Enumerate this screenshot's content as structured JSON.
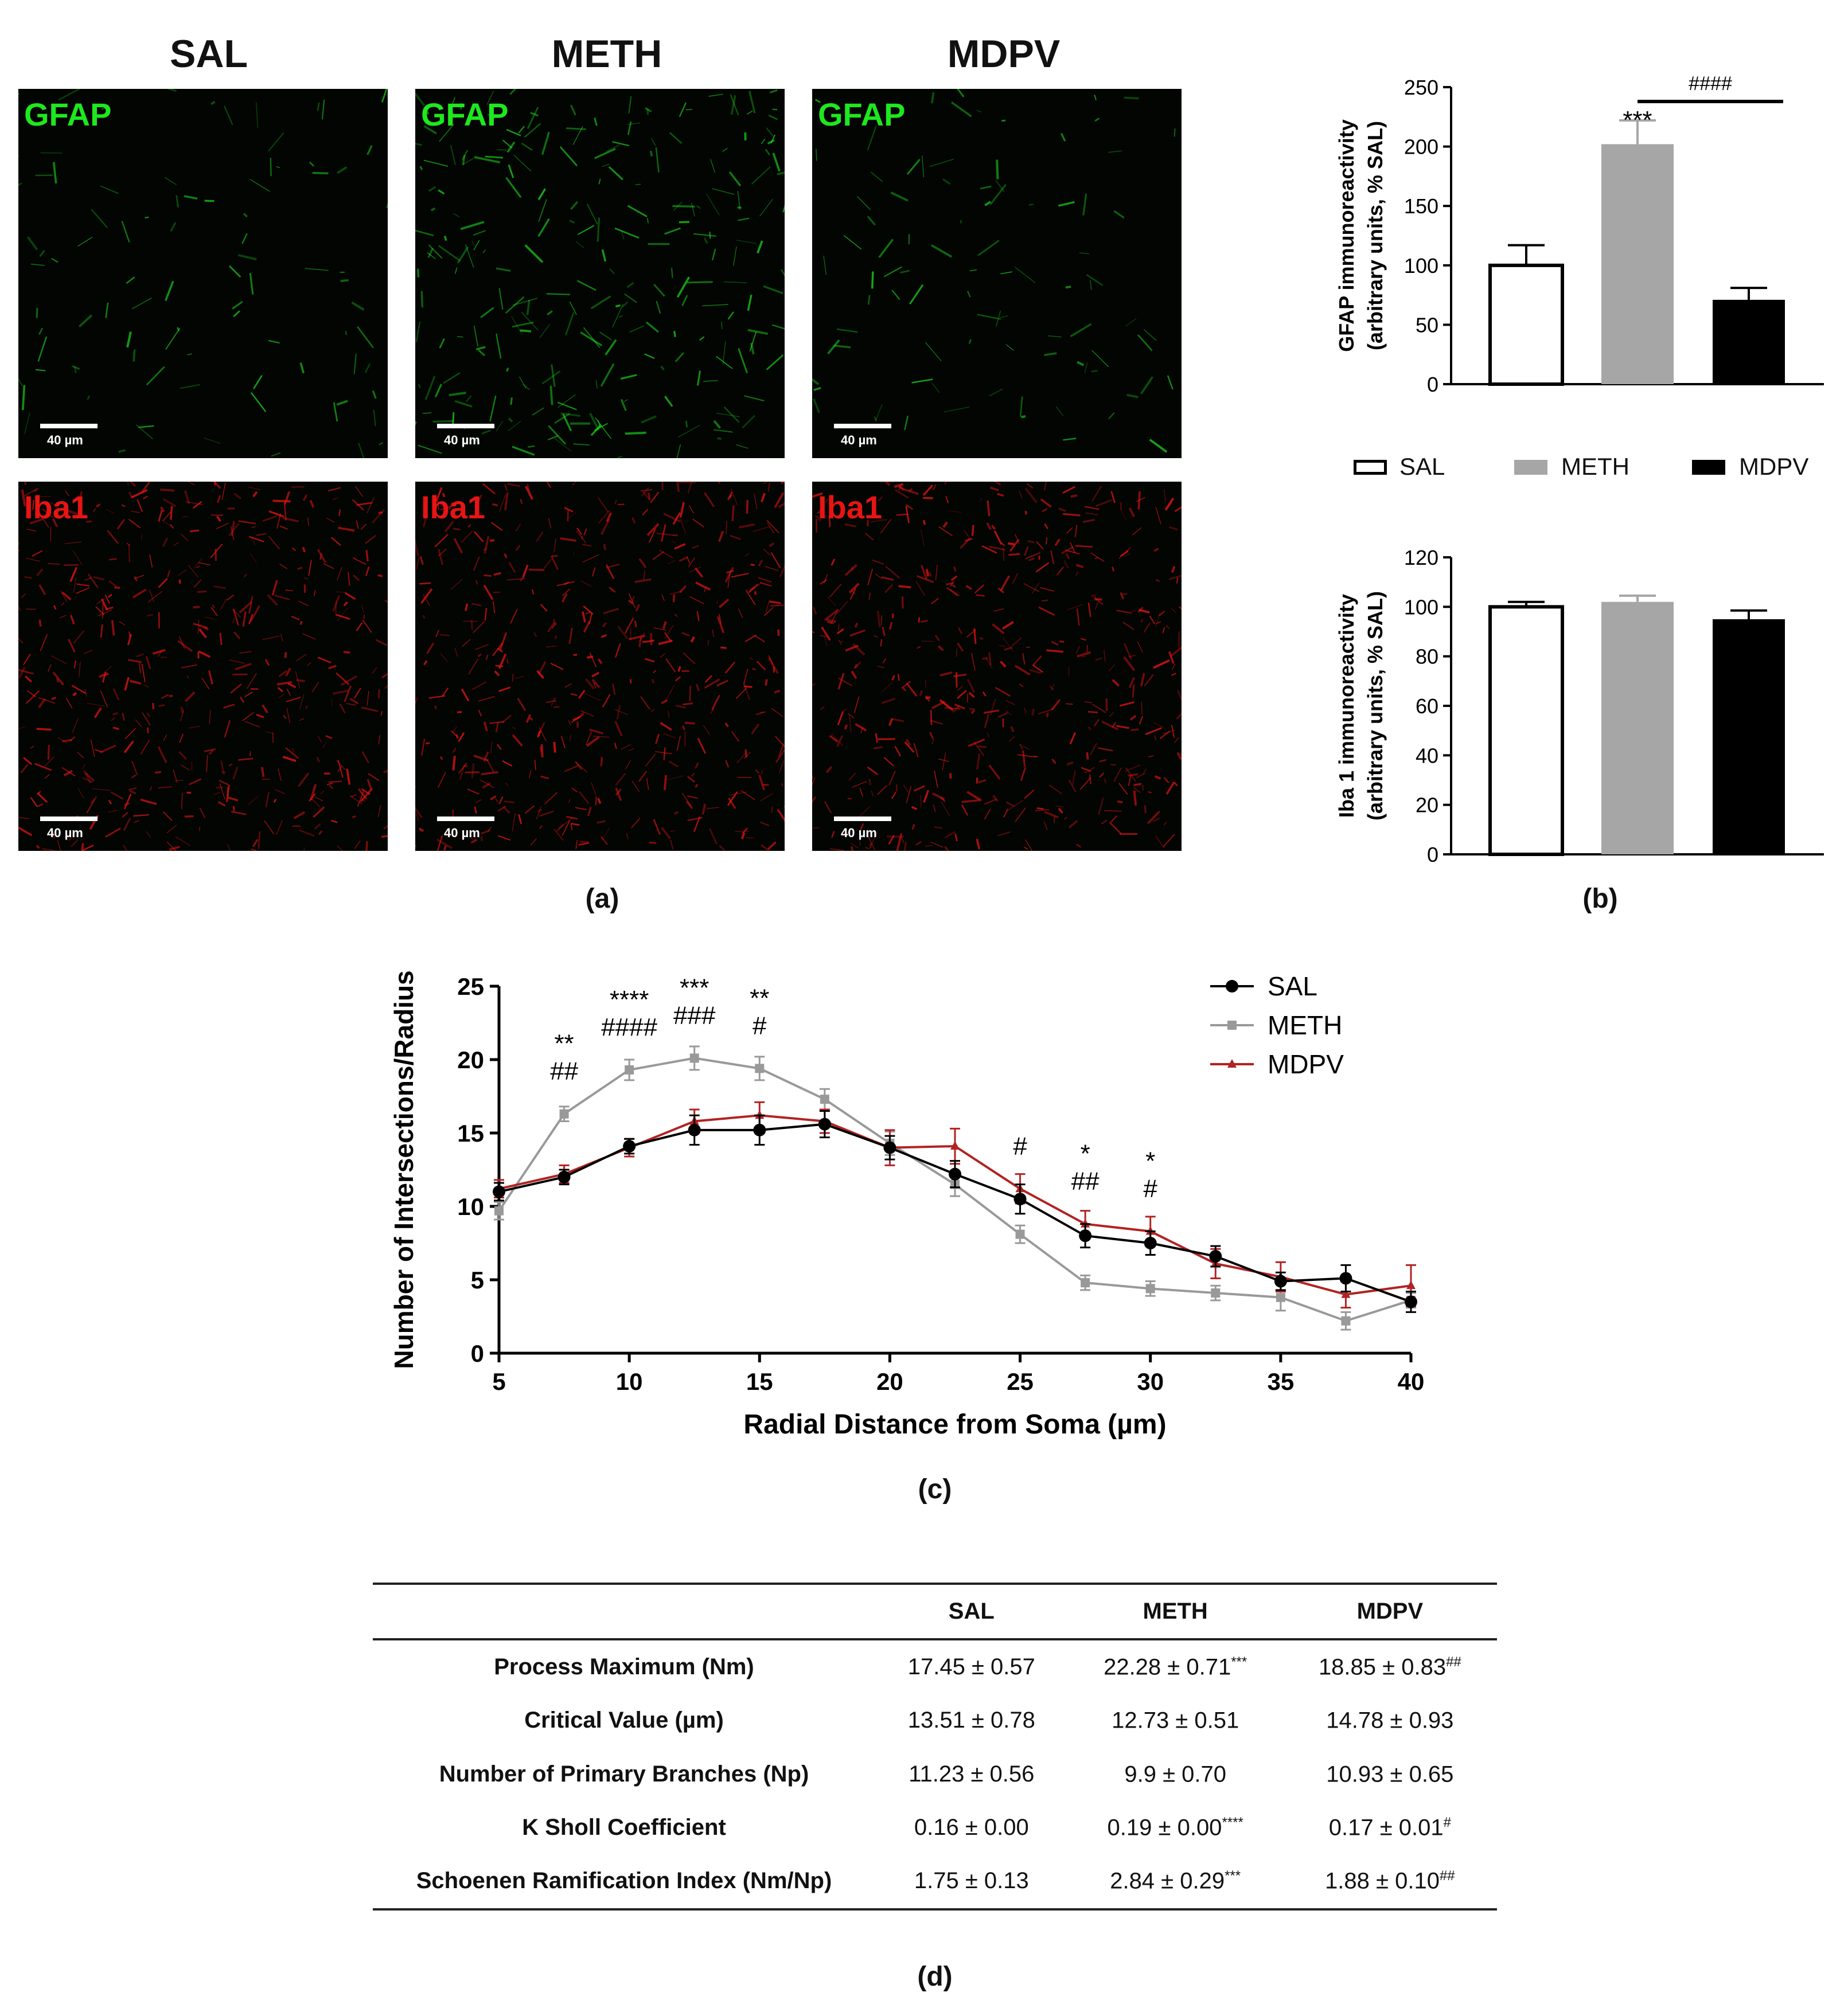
{
  "panel_a": {
    "columns": [
      "SAL",
      "METH",
      "MDPV"
    ],
    "row_labels": [
      "GFAP",
      "Iba1"
    ],
    "scale_bar": "40 µm",
    "colors": {
      "gfap": "#1ee81e",
      "iba1": "#e81414"
    }
  },
  "panel_labels": {
    "a": "(a)",
    "b": "(b)",
    "c": "(c)",
    "d": "(d)"
  },
  "legend_b": [
    "SAL",
    "METH",
    "MDPV"
  ],
  "chart_data": [
    {
      "type": "bar",
      "categories": [
        "SAL",
        "METH",
        "MDPV"
      ],
      "values": [
        100,
        202,
        71
      ],
      "errors": [
        17,
        20,
        10
      ],
      "ylabel_lines": [
        "GFAP immunoreactivity",
        "(arbitrary units, % SAL)"
      ],
      "ylim": [
        0,
        250
      ],
      "yticks": [
        "0",
        "50",
        "100",
        "150",
        "200",
        "250"
      ],
      "ytick_values": [
        0,
        50,
        100,
        150,
        200,
        250
      ],
      "colors": [
        "#ffffff",
        "#a6a6a6",
        "#000000"
      ],
      "annotations": [
        "***",
        "####"
      ]
    },
    {
      "type": "bar",
      "categories": [
        "SAL",
        "METH",
        "MDPV"
      ],
      "values": [
        100,
        102,
        95
      ],
      "errors": [
        2,
        2.5,
        3.5
      ],
      "ylabel_lines": [
        "Iba 1 immunoreactivity",
        "(arbitrary units, % SAL)"
      ],
      "ylim": [
        0,
        120
      ],
      "yticks": [
        "0",
        "20",
        "40",
        "60",
        "80",
        "100",
        "120"
      ],
      "ytick_values": [
        0,
        20,
        40,
        60,
        80,
        100,
        120
      ],
      "colors": [
        "#ffffff",
        "#a6a6a6",
        "#000000"
      ]
    },
    {
      "type": "line",
      "x": [
        5,
        7.5,
        10,
        12.5,
        15,
        17.5,
        20,
        22.5,
        25,
        27.5,
        30,
        32.5,
        35,
        37.5,
        40
      ],
      "series": [
        {
          "name": "SAL",
          "color": "#000000",
          "marker": "circle",
          "values": [
            11.0,
            12.0,
            14.1,
            15.2,
            15.2,
            15.6,
            14.0,
            12.2,
            10.5,
            8.0,
            7.5,
            6.6,
            4.9,
            5.1,
            3.5
          ],
          "errors": [
            0.6,
            0.5,
            0.5,
            1.0,
            1.0,
            0.9,
            0.8,
            0.9,
            1.0,
            0.8,
            0.8,
            0.7,
            0.6,
            0.9,
            0.7
          ]
        },
        {
          "name": "METH",
          "color": "#999999",
          "marker": "square",
          "values": [
            9.7,
            16.3,
            19.3,
            20.1,
            19.4,
            17.3,
            14.3,
            11.5,
            8.1,
            4.8,
            4.4,
            4.1,
            3.8,
            2.2,
            3.6
          ],
          "errors": [
            0.6,
            0.5,
            0.7,
            0.8,
            0.8,
            0.7,
            0.8,
            0.8,
            0.6,
            0.5,
            0.5,
            0.5,
            0.9,
            0.6,
            0.5
          ]
        },
        {
          "name": "MDPV",
          "color": "#b22222",
          "marker": "triangle",
          "values": [
            11.2,
            12.2,
            14.0,
            15.8,
            16.2,
            15.8,
            14.0,
            14.1,
            11.2,
            8.8,
            8.3,
            6.1,
            5.2,
            4.0,
            4.6
          ],
          "errors": [
            0.6,
            0.6,
            0.6,
            0.8,
            0.9,
            0.8,
            1.2,
            1.2,
            1.0,
            0.9,
            1.0,
            1.0,
            1.0,
            0.9,
            1.4
          ]
        }
      ],
      "xlabel": "Radial Distance from Soma (µm)",
      "ylabel": "Number of Intersections/Radius",
      "xlim": [
        5,
        40
      ],
      "ylim": [
        0,
        25
      ],
      "xticks": [
        "5",
        "10",
        "15",
        "20",
        "25",
        "30",
        "35",
        "40"
      ],
      "xtick_values": [
        5,
        10,
        15,
        20,
        25,
        30,
        35,
        40
      ],
      "yticks": [
        "0",
        "5",
        "10",
        "15",
        "20",
        "25"
      ],
      "ytick_values": [
        0,
        5,
        10,
        15,
        20,
        25
      ],
      "legend_position": "top-right",
      "annotations": [
        {
          "x": 7.5,
          "y": 16.3,
          "lines": [
            "**",
            "##"
          ]
        },
        {
          "x": 10,
          "y": 19.3,
          "lines": [
            "****",
            "####"
          ]
        },
        {
          "x": 12.5,
          "y": 20.1,
          "lines": [
            "***",
            "###"
          ]
        },
        {
          "x": 15,
          "y": 19.4,
          "lines": [
            "**",
            "#"
          ]
        },
        {
          "x": 25,
          "y": 11.2,
          "lines": [
            "#"
          ]
        },
        {
          "x": 27.5,
          "y": 8.8,
          "lines": [
            "*",
            "##"
          ]
        },
        {
          "x": 30,
          "y": 8.3,
          "lines": [
            "*",
            "#"
          ]
        }
      ]
    }
  ],
  "table": {
    "headers": [
      "",
      "SAL",
      "METH",
      "MDPV"
    ],
    "rows": [
      {
        "label": "Process Maximum (Nm)",
        "sal": "17.45 ± 0.57",
        "meth": "22.28 ± 0.71",
        "meth_sig": "***",
        "mdpv": "18.85 ± 0.83",
        "mdpv_sig": "##"
      },
      {
        "label": "Critical Value (µm)",
        "sal": "13.51 ± 0.78",
        "meth": "12.73 ± 0.51",
        "meth_sig": "",
        "mdpv": "14.78 ± 0.93",
        "mdpv_sig": ""
      },
      {
        "label": "Number of Primary Branches (Np)",
        "sal": "11.23 ± 0.56",
        "meth": "9.9 ± 0.70",
        "meth_sig": "",
        "mdpv": "10.93 ± 0.65",
        "mdpv_sig": ""
      },
      {
        "label": "K Sholl Coefficient",
        "sal": "0.16 ± 0.00",
        "meth": "0.19 ± 0.00",
        "meth_sig": "****",
        "mdpv": "0.17 ± 0.01",
        "mdpv_sig": "#"
      },
      {
        "label": "Schoenen Ramification Index (Nm/Np)",
        "sal": "1.75 ± 0.13",
        "meth": "2.84 ± 0.29",
        "meth_sig": "***",
        "mdpv": "1.88 ± 0.10",
        "mdpv_sig": "##"
      }
    ]
  }
}
